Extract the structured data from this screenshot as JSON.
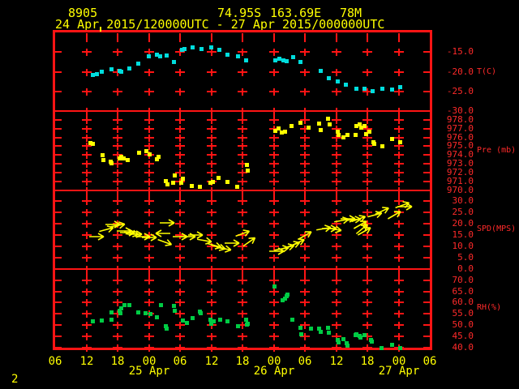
{
  "header": {
    "station_id": "8905",
    "latitude": "74.95S",
    "longitude": "163.69E",
    "elevation": "78M",
    "time_range": "24 Apr 2015/120000UTC - 27 Apr 2015/000000UTC"
  },
  "footer": {
    "page_number": "2"
  },
  "colors": {
    "background": "#000000",
    "grid_red": "#ff1414",
    "label_red": "#ff2a2a",
    "text_yellow": "#ffff00",
    "temperature_cyan": "#00dddd",
    "pressure_yellow": "#ffff00",
    "wind_yellow": "#ffff00",
    "humidity_green": "#00cc44"
  },
  "chart_data": {
    "type": "scatter",
    "layout": "4 stacked time-series panels",
    "x_unit": "hours since 24 Apr 2015 06:00 UTC",
    "x_range": [
      0,
      72
    ],
    "x_tick_interval_hours": 6,
    "hour_labels": [
      "06",
      "12",
      "18",
      "00",
      "06",
      "12",
      "18",
      "00",
      "06",
      "12",
      "18",
      "00",
      "06"
    ],
    "date_labels": [
      {
        "label": "25 Apr",
        "gridline": 3
      },
      {
        "label": "26 Apr",
        "gridline": 7
      },
      {
        "label": "27 Apr",
        "gridline": 11
      }
    ],
    "top_marker_hour": 8.7,
    "panels": [
      {
        "name": "temperature",
        "label": "T(C)",
        "type": "scatter",
        "color_key": "temperature_cyan",
        "yticks": [
          -15,
          -20,
          -25,
          -30
        ],
        "ytick_labels": [
          "-15.0",
          "-20.0",
          "-25.0",
          "-30.0"
        ],
        "points": [
          [
            7.2,
            -20.7
          ],
          [
            7.9,
            -20.4
          ],
          [
            8.9,
            -19.9
          ],
          [
            10.8,
            -19.3
          ],
          [
            12.3,
            -19.7
          ],
          [
            12.6,
            -19.9
          ],
          [
            14.2,
            -19.1
          ],
          [
            15.9,
            -17.8
          ],
          [
            17.9,
            -15.9
          ],
          [
            19.5,
            -15.5
          ],
          [
            20.1,
            -15.9
          ],
          [
            21.3,
            -15.7
          ],
          [
            22.8,
            -17.4
          ],
          [
            24.3,
            -14.4
          ],
          [
            24.8,
            -14.2
          ],
          [
            26.3,
            -13.8
          ],
          [
            28.0,
            -14.2
          ],
          [
            29.9,
            -13.8
          ],
          [
            31.5,
            -14.4
          ],
          [
            33.0,
            -15.5
          ],
          [
            35.1,
            -15.9
          ],
          [
            36.6,
            -17.0
          ],
          [
            42.2,
            -17.0
          ],
          [
            43.0,
            -16.6
          ],
          [
            43.8,
            -17.0
          ],
          [
            44.4,
            -17.2
          ],
          [
            45.7,
            -16.1
          ],
          [
            47.1,
            -17.4
          ],
          [
            51.0,
            -19.7
          ],
          [
            52.5,
            -21.6
          ],
          [
            54.2,
            -22.3
          ],
          [
            55.8,
            -23.1
          ],
          [
            57.8,
            -24.2
          ],
          [
            59.4,
            -24.2
          ],
          [
            60.9,
            -24.8
          ],
          [
            62.8,
            -24.2
          ],
          [
            64.7,
            -24.4
          ],
          [
            66.2,
            -23.8
          ]
        ]
      },
      {
        "name": "pressure",
        "label": "Pre (mb)",
        "type": "scatter",
        "color_key": "pressure_yellow",
        "yticks": [
          978,
          977,
          976,
          975,
          974,
          973,
          972,
          971,
          970
        ],
        "ytick_labels": [
          "978.0",
          "977.0",
          "976.0",
          "975.0",
          "974.0",
          "973.0",
          "972.0",
          "971.0",
          "970.0"
        ],
        "points": [
          [
            6.7,
            975.4
          ],
          [
            7.2,
            975.3
          ],
          [
            9.0,
            974.0
          ],
          [
            9.2,
            973.5
          ],
          [
            10.6,
            973.3
          ],
          [
            10.8,
            973.1
          ],
          [
            12.3,
            973.7
          ],
          [
            12.6,
            973.8
          ],
          [
            13.1,
            973.7
          ],
          [
            13.9,
            973.5
          ],
          [
            16.1,
            974.3
          ],
          [
            17.5,
            974.5
          ],
          [
            18.1,
            974.1
          ],
          [
            19.5,
            973.6
          ],
          [
            19.8,
            973.8
          ],
          [
            21.2,
            971.1
          ],
          [
            21.5,
            970.7
          ],
          [
            22.6,
            970.9
          ],
          [
            22.9,
            971.7
          ],
          [
            24.2,
            970.9
          ],
          [
            24.5,
            971.3
          ],
          [
            26.2,
            970.5
          ],
          [
            27.7,
            970.4
          ],
          [
            29.8,
            970.9
          ],
          [
            30.2,
            971.0
          ],
          [
            31.3,
            971.4
          ],
          [
            33.0,
            971.0
          ],
          [
            34.9,
            970.4
          ],
          [
            36.8,
            972.9
          ],
          [
            36.9,
            972.3
          ],
          [
            42.2,
            976.8
          ],
          [
            42.9,
            977.1
          ],
          [
            43.5,
            976.6
          ],
          [
            44.1,
            976.7
          ],
          [
            45.3,
            977.4
          ],
          [
            47.1,
            977.7
          ],
          [
            48.6,
            977.2
          ],
          [
            50.6,
            977.6
          ],
          [
            51.0,
            976.9
          ],
          [
            52.4,
            978.2
          ],
          [
            52.7,
            977.5
          ],
          [
            54.2,
            976.7
          ],
          [
            54.4,
            976.3
          ],
          [
            55.3,
            976.1
          ],
          [
            56.1,
            976.3
          ],
          [
            57.7,
            976.3
          ],
          [
            57.8,
            977.4
          ],
          [
            58.4,
            977.5
          ],
          [
            58.7,
            977.2
          ],
          [
            59.4,
            977.4
          ],
          [
            59.7,
            976.4
          ],
          [
            60.3,
            976.7
          ],
          [
            61.1,
            975.5
          ],
          [
            61.2,
            975.3
          ],
          [
            62.8,
            975.0
          ],
          [
            64.7,
            975.9
          ],
          [
            66.2,
            975.5
          ]
        ]
      },
      {
        "name": "wind_speed",
        "label": "SPD(MPS)",
        "type": "vector",
        "color_key": "wind_yellow",
        "yticks": [
          30,
          25,
          20,
          15,
          10,
          5,
          0
        ],
        "ytick_labels": [
          "30.0",
          "25.0",
          "20.0",
          "15.0",
          "10.0",
          "5.0",
          "0.0"
        ],
        "points": [
          [
            8.1,
            14.3,
            0
          ],
          [
            10.0,
            17.5,
            -15
          ],
          [
            11.2,
            19.7,
            0
          ],
          [
            12.2,
            19.3,
            -10
          ],
          [
            13.4,
            16.8,
            0
          ],
          [
            14.0,
            16.1,
            0
          ],
          [
            14.8,
            15.7,
            10
          ],
          [
            15.4,
            15.4,
            0
          ],
          [
            17.0,
            14.3,
            0
          ],
          [
            18.2,
            13.9,
            0
          ],
          [
            20.5,
            15.7,
            180
          ],
          [
            21.2,
            11.8,
            20
          ],
          [
            21.7,
            20.4,
            0
          ],
          [
            24.2,
            14.3,
            0
          ],
          [
            25.7,
            14.3,
            0
          ],
          [
            27.1,
            15.0,
            0
          ],
          [
            28.8,
            12.5,
            10
          ],
          [
            30.7,
            10.3,
            15
          ],
          [
            31.5,
            9.6,
            15
          ],
          [
            32.6,
            8.9,
            10
          ],
          [
            34.1,
            11.4,
            0
          ],
          [
            36.2,
            15.7,
            -20
          ],
          [
            37.4,
            12.1,
            -35
          ],
          [
            42.7,
            7.8,
            0
          ],
          [
            43.6,
            8.9,
            -10
          ],
          [
            44.7,
            9.6,
            -15
          ],
          [
            45.8,
            10.7,
            -20
          ],
          [
            46.7,
            11.8,
            -25
          ],
          [
            48.1,
            15.0,
            -30
          ],
          [
            51.7,
            17.9,
            -10
          ],
          [
            52.8,
            17.9,
            0
          ],
          [
            53.8,
            17.5,
            10
          ],
          [
            55.2,
            21.5,
            -10
          ],
          [
            56.4,
            22.2,
            0
          ],
          [
            57.5,
            21.8,
            -5
          ],
          [
            58.4,
            22.2,
            -20
          ],
          [
            58.7,
            19.7,
            -30
          ],
          [
            59.1,
            17.9,
            -40
          ],
          [
            59.5,
            16.8,
            -30
          ],
          [
            61.5,
            24.0,
            -15
          ],
          [
            62.9,
            25.8,
            -25
          ],
          [
            65.3,
            24.0,
            -30
          ],
          [
            66.9,
            28.3,
            -20
          ],
          [
            67.3,
            27.6,
            0
          ]
        ]
      },
      {
        "name": "relative_humidity",
        "label": "RH(%)",
        "type": "scatter",
        "color_key": "humidity_green",
        "yticks": [
          70,
          65,
          60,
          55,
          50,
          45,
          40
        ],
        "ytick_labels": [
          "70.0",
          "65.0",
          "60.0",
          "55.0",
          "50.0",
          "45.0",
          "40.0"
        ],
        "points": [
          [
            7.2,
            51.9
          ],
          [
            8.9,
            52.2
          ],
          [
            10.8,
            55.8
          ],
          [
            10.8,
            52.6
          ],
          [
            12.3,
            56.5
          ],
          [
            12.5,
            55.5
          ],
          [
            12.6,
            57.6
          ],
          [
            13.2,
            59.1
          ],
          [
            14.2,
            59.1
          ],
          [
            15.9,
            55.8
          ],
          [
            17.3,
            55.5
          ],
          [
            18.2,
            55.1
          ],
          [
            19.5,
            53.7
          ],
          [
            20.3,
            59.1
          ],
          [
            21.2,
            49.7
          ],
          [
            21.3,
            48.6
          ],
          [
            22.8,
            58.7
          ],
          [
            22.9,
            56.5
          ],
          [
            24.5,
            52.2
          ],
          [
            25.2,
            51.1
          ],
          [
            26.3,
            53.3
          ],
          [
            27.7,
            56.2
          ],
          [
            27.9,
            55.5
          ],
          [
            29.8,
            52.6
          ],
          [
            29.9,
            50.8
          ],
          [
            30.4,
            51.9
          ],
          [
            31.6,
            52.6
          ],
          [
            33.0,
            51.9
          ],
          [
            35.1,
            49.7
          ],
          [
            36.6,
            52.6
          ],
          [
            36.8,
            50.4
          ],
          [
            36.9,
            50.8
          ],
          [
            42.1,
            67.3
          ],
          [
            43.6,
            61.2
          ],
          [
            44.1,
            61.9
          ],
          [
            44.4,
            63.0
          ],
          [
            44.6,
            63.7
          ],
          [
            45.5,
            52.6
          ],
          [
            47.1,
            49.0
          ],
          [
            47.2,
            46.1
          ],
          [
            49.1,
            48.6
          ],
          [
            50.6,
            48.6
          ],
          [
            51.0,
            47.2
          ],
          [
            52.4,
            49.0
          ],
          [
            52.5,
            46.8
          ],
          [
            54.2,
            43.6
          ],
          [
            54.4,
            42.5
          ],
          [
            55.3,
            44.0
          ],
          [
            55.9,
            42.2
          ],
          [
            56.1,
            41.1
          ],
          [
            57.7,
            45.8
          ],
          [
            57.8,
            46.1
          ],
          [
            58.4,
            45.4
          ],
          [
            58.6,
            44.7
          ],
          [
            59.4,
            45.8
          ],
          [
            60.6,
            43.6
          ],
          [
            60.8,
            42.9
          ],
          [
            62.7,
            40.0
          ],
          [
            64.7,
            41.4
          ],
          [
            66.2,
            40.0
          ]
        ]
      }
    ]
  }
}
